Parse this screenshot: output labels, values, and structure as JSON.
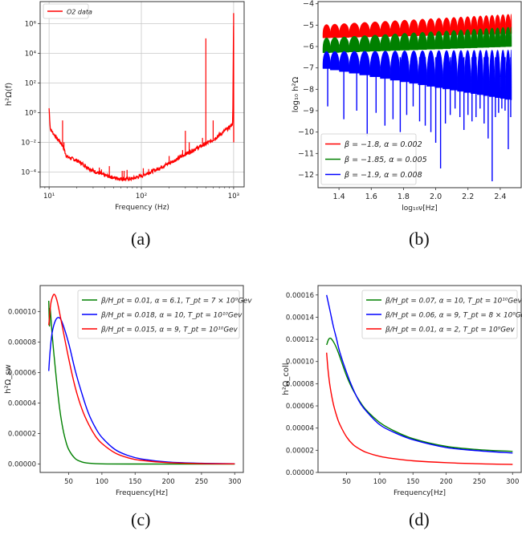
{
  "captions": [
    "(a)",
    "(b)",
    "(c)",
    "(d)"
  ],
  "chart_data": [
    {
      "id": "a",
      "type": "line",
      "title": "",
      "xlabel": "Frequency (Hz)",
      "ylabel": "h²Ω(f)",
      "xscale": "log",
      "yscale": "log",
      "xlim": [
        8,
        1300
      ],
      "ylim": [
        1e-05,
        30000000.0
      ],
      "xticks": [
        {
          "v": 10,
          "label": "10¹"
        },
        {
          "v": 100,
          "label": "10²"
        },
        {
          "v": 1000,
          "label": "10³"
        }
      ],
      "yticks": [
        {
          "v": 1000000.0,
          "label": "10⁶"
        },
        {
          "v": 10000.0,
          "label": "10⁴"
        },
        {
          "v": 100,
          "label": "10²"
        },
        {
          "v": 1,
          "label": "10⁰"
        },
        {
          "v": 0.01,
          "label": "10⁻²"
        },
        {
          "v": 0.0001,
          "label": "10⁻⁴"
        }
      ],
      "grid": true,
      "legend": {
        "position": "top-left",
        "entries": [
          {
            "name": "O2 data",
            "color": "#ff0000"
          }
        ]
      },
      "series": [
        {
          "name": "O2 data",
          "color": "#ff0000",
          "baseline": [
            [
              10,
              2
            ],
            [
              10.3,
              0.08
            ],
            [
              12,
              0.02
            ],
            [
              13,
              0.012
            ],
            [
              14,
              0.006
            ],
            [
              15,
              0.002
            ],
            [
              15.5,
              0.0011
            ],
            [
              20,
              0.0006
            ],
            [
              25,
              0.00025
            ],
            [
              30,
              0.00012
            ],
            [
              40,
              6e-05
            ],
            [
              50,
              4.2e-05
            ],
            [
              60,
              3.5e-05
            ],
            [
              70,
              3.5e-05
            ],
            [
              80,
              3.6e-05
            ],
            [
              100,
              5.5e-05
            ],
            [
              120,
              9e-05
            ],
            [
              150,
              0.00016
            ],
            [
              200,
              0.0004
            ],
            [
              250,
              0.0008
            ],
            [
              300,
              0.0016
            ],
            [
              400,
              0.004
            ],
            [
              500,
              0.008
            ],
            [
              600,
              0.015
            ],
            [
              700,
              0.03
            ],
            [
              800,
              0.06
            ],
            [
              900,
              0.1
            ],
            [
              980,
              0.2
            ],
            [
              1000,
              5000000.0
            ]
          ],
          "spikes": [
            [
              14,
              0.3
            ],
            [
              14.5,
              0.01
            ],
            [
              35,
              0.0002
            ],
            [
              37,
              0.00015
            ],
            [
              45,
              0.00025
            ],
            [
              62,
              0.00012
            ],
            [
              65,
              0.00012
            ],
            [
              70,
              0.00014
            ],
            [
              105,
              0.00018
            ],
            [
              120,
              0.00016
            ],
            [
              200,
              0.0012
            ],
            [
              280,
              0.003
            ],
            [
              300,
              0.06
            ],
            [
              330,
              0.01
            ],
            [
              460,
              0.02
            ],
            [
              500,
              100000.0
            ],
            [
              600,
              0.3
            ],
            [
              700,
              0.05
            ]
          ]
        }
      ]
    },
    {
      "id": "b",
      "type": "line",
      "title": "",
      "xlabel": "log₁₀ν[Hz]",
      "ylabel": "log₁₀ h²Ω",
      "xlim": [
        1.27,
        2.53
      ],
      "ylim": [
        -12.6,
        -3.9
      ],
      "xticks": [
        1.4,
        1.6,
        1.8,
        2.0,
        2.2,
        2.4
      ],
      "yticks": [
        -4,
        -5,
        -6,
        -7,
        -8,
        -9,
        -10,
        -11,
        -12
      ],
      "grid": false,
      "legend": {
        "position": "bottom-left",
        "entries": [
          {
            "name": "β = −1.8, α = 0.002",
            "color": "#ff0000"
          },
          {
            "name": "β = −1.85, α = 0.005",
            "color": "#008000"
          },
          {
            "name": "β = −1.9, α = 0.008",
            "color": "#0000ff"
          }
        ]
      },
      "x_range": [
        1.3,
        2.47
      ],
      "series": [
        {
          "name": "β = −1.8, α = 0.002",
          "color": "#ff0000",
          "envelope_top": [
            -4.9,
            -4.3
          ],
          "envelope_bottom": [
            -5.6,
            -5.4
          ]
        },
        {
          "name": "β = −1.85, α = 0.005",
          "color": "#008000",
          "envelope_top": [
            -5.5,
            -4.9
          ],
          "envelope_bottom": [
            -6.3,
            -6.0
          ]
        },
        {
          "name": "β = −1.9, α = 0.008",
          "color": "#0000ff",
          "envelope_top": [
            -6.1,
            -5.5
          ],
          "envelope_bottom": [
            -7.0,
            -8.5
          ],
          "dips": [
            [
              1.33,
              -8.8
            ],
            [
              1.43,
              -9.4
            ],
            [
              1.51,
              -9.0
            ],
            [
              1.575,
              -10.2
            ],
            [
              1.63,
              -9.1
            ],
            [
              1.685,
              -9.7
            ],
            [
              1.735,
              -9.4
            ],
            [
              1.78,
              -10.0
            ],
            [
              1.82,
              -9.2
            ],
            [
              1.86,
              -8.8
            ],
            [
              1.9,
              -9.5
            ],
            [
              1.935,
              -9.7
            ],
            [
              1.97,
              -10.0
            ],
            [
              2.0,
              -10.5
            ],
            [
              2.03,
              -11.7
            ],
            [
              2.06,
              -9.6
            ],
            [
              2.09,
              -9.2
            ],
            [
              2.12,
              -8.9
            ],
            [
              2.15,
              -9.3
            ],
            [
              2.175,
              -9.9
            ],
            [
              2.2,
              -9.2
            ],
            [
              2.225,
              -9.5
            ],
            [
              2.25,
              -9.3
            ],
            [
              2.275,
              -8.9
            ],
            [
              2.3,
              -9.6
            ],
            [
              2.325,
              -10.3
            ],
            [
              2.35,
              -12.3
            ],
            [
              2.37,
              -9.3
            ],
            [
              2.39,
              -9.1
            ],
            [
              2.41,
              -8.9
            ],
            [
              2.43,
              -9.0
            ],
            [
              2.45,
              -10.8
            ],
            [
              2.465,
              -9.3
            ]
          ]
        }
      ]
    },
    {
      "id": "c",
      "type": "line",
      "title": "",
      "xlabel": "Frequency[Hz]",
      "ylabel": "h²Ω_sw",
      "xlim": [
        7,
        313
      ],
      "ylim": [
        -5.5e-06,
        0.000117
      ],
      "xticks": [
        50,
        100,
        150,
        200,
        250,
        300
      ],
      "yticks": [
        {
          "v": 0,
          "label": "0.00000"
        },
        {
          "v": 2e-05,
          "label": "0.00002"
        },
        {
          "v": 4e-05,
          "label": "0.00004"
        },
        {
          "v": 6e-05,
          "label": "0.00006"
        },
        {
          "v": 8e-05,
          "label": "0.00008"
        },
        {
          "v": 0.0001,
          "label": "0.00010"
        }
      ],
      "grid": false,
      "legend": {
        "position": "top-right",
        "entries": [
          {
            "name": "β/H_pt = 0.01, α = 6.1, T_pt = 7 × 10⁹Gev",
            "color": "#008000"
          },
          {
            "name": "β/H_pt = 0.018, α = 10, T_pt = 10¹⁰Gev",
            "color": "#0000ff"
          },
          {
            "name": "β/H_pt = 0.015, α = 9, T_pt = 10¹⁰Gev",
            "color": "#ff0000"
          }
        ]
      },
      "series": [
        {
          "name": "β/H_pt = 0.01, α = 6.1, T_pt = 7 × 10⁹Gev",
          "color": "#008000",
          "points": [
            [
              20,
              0.000107
            ],
            [
              21,
              9.05e-05
            ],
            [
              22,
              0.000102
            ],
            [
              25,
              8.5e-05
            ],
            [
              30,
              6.2e-05
            ],
            [
              35,
              4.1e-05
            ],
            [
              40,
              2.6e-05
            ],
            [
              45,
              1.6e-05
            ],
            [
              50,
              9.5e-06
            ],
            [
              60,
              3.5e-06
            ],
            [
              70,
              1.4e-06
            ],
            [
              80,
              6e-07
            ],
            [
              100,
              1e-07
            ],
            [
              150,
              0.0
            ],
            [
              300,
              0.0
            ]
          ]
        },
        {
          "name": "β/H_pt = 0.018, α = 10, T_pt = 10¹⁰Gev",
          "color": "#0000ff",
          "points": [
            [
              20,
              6.1e-05
            ],
            [
              22,
              7.4e-05
            ],
            [
              25,
              8.6e-05
            ],
            [
              30,
              9.4e-05
            ],
            [
              35,
              9.6e-05
            ],
            [
              40,
              9.3e-05
            ],
            [
              50,
              7.9e-05
            ],
            [
              60,
              6.1e-05
            ],
            [
              70,
              4.6e-05
            ],
            [
              80,
              3.3e-05
            ],
            [
              90,
              2.4e-05
            ],
            [
              100,
              1.75e-05
            ],
            [
              120,
              9.5e-06
            ],
            [
              140,
              5.5e-06
            ],
            [
              160,
              3.3e-06
            ],
            [
              200,
              1.3e-06
            ],
            [
              250,
              5e-07
            ],
            [
              300,
              2e-07
            ]
          ]
        },
        {
          "name": "β/H_pt = 0.015, α = 9, T_pt = 10¹⁰Gev",
          "color": "#ff0000",
          "points": [
            [
              20,
              9.1e-05
            ],
            [
              21,
              9.6e-05
            ],
            [
              23,
              0.000105
            ],
            [
              26,
              0.00011
            ],
            [
              29,
              0.000111
            ],
            [
              33,
              0.000106
            ],
            [
              40,
              9.1e-05
            ],
            [
              50,
              6.9e-05
            ],
            [
              60,
              5e-05
            ],
            [
              70,
              3.6e-05
            ],
            [
              80,
              2.6e-05
            ],
            [
              90,
              1.85e-05
            ],
            [
              100,
              1.35e-05
            ],
            [
              120,
              7.2e-06
            ],
            [
              140,
              4e-06
            ],
            [
              160,
              2.4e-06
            ],
            [
              200,
              9e-07
            ],
            [
              250,
              3e-07
            ],
            [
              300,
              1e-07
            ]
          ]
        }
      ]
    },
    {
      "id": "d",
      "type": "line",
      "title": "",
      "xlabel": "Frequency[Hz]",
      "ylabel": "h²Ω_coll",
      "xlim": [
        7,
        313
      ],
      "ylim": [
        0,
        0.0001685
      ],
      "xticks": [
        50,
        100,
        150,
        200,
        250,
        300
      ],
      "yticks": [
        {
          "v": 0,
          "label": "0.00000"
        },
        {
          "v": 2e-05,
          "label": "0.00002"
        },
        {
          "v": 4e-05,
          "label": "0.00004"
        },
        {
          "v": 6e-05,
          "label": "0.00006"
        },
        {
          "v": 8e-05,
          "label": "0.00008"
        },
        {
          "v": 0.0001,
          "label": "0.00010"
        },
        {
          "v": 0.00012,
          "label": "0.00012"
        },
        {
          "v": 0.00014,
          "label": "0.00014"
        },
        {
          "v": 0.00016,
          "label": "0.00016"
        }
      ],
      "grid": false,
      "legend": {
        "position": "top-right",
        "entries": [
          {
            "name": "β/H_pt = 0.07, α = 10, T_pt = 10¹⁰Gev",
            "color": "#008000"
          },
          {
            "name": "β/H_pt = 0.06, α = 9, T_pt = 8 × 10⁹Gev",
            "color": "#0000ff"
          },
          {
            "name": "β/H_pt = 0.01, α = 2, T_pt = 10⁹Gev",
            "color": "#ff0000"
          }
        ]
      },
      "series": [
        {
          "name": "β/H_pt = 0.07, α = 10, T_pt = 10¹⁰Gev",
          "color": "#008000",
          "points": [
            [
              20,
              0.000115
            ],
            [
              23,
              0.00012
            ],
            [
              26,
              0.000121
            ],
            [
              30,
              0.000118
            ],
            [
              35,
              0.000112
            ],
            [
              40,
              0.000104
            ],
            [
              50,
              8.7e-05
            ],
            [
              60,
              7.4e-05
            ],
            [
              70,
              6.4e-05
            ],
            [
              80,
              5.6e-05
            ],
            [
              100,
              4.5e-05
            ],
            [
              120,
              3.8e-05
            ],
            [
              150,
              3.05e-05
            ],
            [
              200,
              2.35e-05
            ],
            [
              250,
              2.05e-05
            ],
            [
              300,
              1.9e-05
            ]
          ]
        },
        {
          "name": "β/H_pt = 0.06, α = 9, T_pt = 8 × 10⁹Gev",
          "color": "#0000ff",
          "points": [
            [
              20,
              0.00016
            ],
            [
              25,
              0.000146
            ],
            [
              30,
              0.000132
            ],
            [
              35,
              0.00012
            ],
            [
              40,
              0.000108
            ],
            [
              50,
              9e-05
            ],
            [
              60,
              7.5e-05
            ],
            [
              70,
              6.3e-05
            ],
            [
              80,
              5.5e-05
            ],
            [
              100,
              4.3e-05
            ],
            [
              120,
              3.65e-05
            ],
            [
              150,
              2.95e-05
            ],
            [
              200,
              2.25e-05
            ],
            [
              250,
              1.95e-05
            ],
            [
              300,
              1.75e-05
            ]
          ]
        },
        {
          "name": "β/H_pt = 0.01, α = 2, T_pt = 10⁹Gev",
          "color": "#ff0000",
          "points": [
            [
              20,
              0.000108
            ],
            [
              22,
              9.3e-05
            ],
            [
              25,
              7.8e-05
            ],
            [
              30,
              6.2e-05
            ],
            [
              35,
              5.1e-05
            ],
            [
              40,
              4.3e-05
            ],
            [
              50,
              3.2e-05
            ],
            [
              60,
              2.5e-05
            ],
            [
              70,
              2.1e-05
            ],
            [
              80,
              1.8e-05
            ],
            [
              100,
              1.45e-05
            ],
            [
              120,
              1.25e-05
            ],
            [
              150,
              1.05e-05
            ],
            [
              200,
              8.8e-06
            ],
            [
              250,
              7.8e-06
            ],
            [
              300,
              7.2e-06
            ]
          ]
        }
      ]
    }
  ]
}
